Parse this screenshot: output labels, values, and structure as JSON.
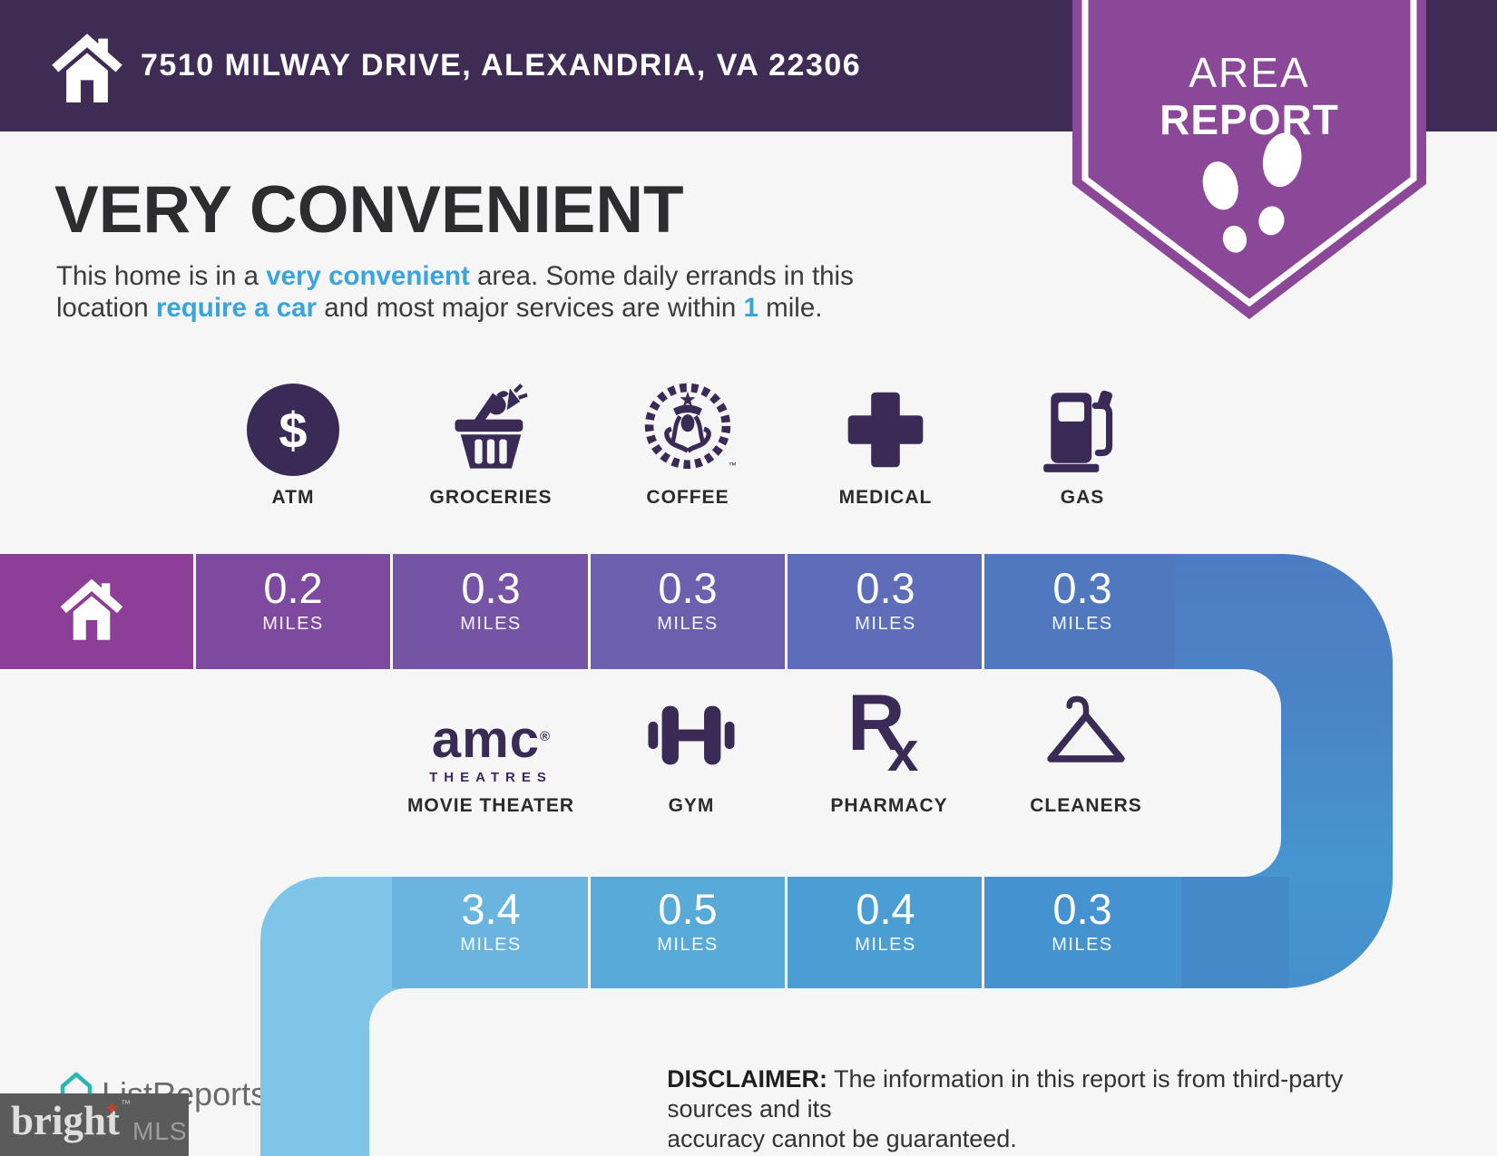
{
  "header": {
    "address": "7510 MILWAY DRIVE, ALEXANDRIA, VA 22306"
  },
  "badge": {
    "line1": "AREA",
    "line2": "REPORT"
  },
  "headline": "VERY CONVENIENT",
  "intro": {
    "line1_parts": [
      {
        "t": "This home is in a "
      },
      {
        "t": "very convenient",
        "hl": true
      },
      {
        "t": " area. Some daily errands in this"
      }
    ],
    "line2_parts": [
      {
        "t": "location "
      },
      {
        "t": "require a car",
        "hl": true
      },
      {
        "t": " and most major services are within "
      },
      {
        "t": "1",
        "hl": true
      },
      {
        "t": " mile."
      }
    ]
  },
  "row1": {
    "items": [
      {
        "label": "ATM",
        "distance": "0.2",
        "unit": "MILES"
      },
      {
        "label": "GROCERIES",
        "distance": "0.3",
        "unit": "MILES"
      },
      {
        "label": "COFFEE",
        "distance": "0.3",
        "unit": "MILES"
      },
      {
        "label": "MEDICAL",
        "distance": "0.3",
        "unit": "MILES"
      },
      {
        "label": "GAS",
        "distance": "0.3",
        "unit": "MILES"
      }
    ]
  },
  "row2": {
    "items": [
      {
        "label": "MOVIE THEATER",
        "distance": "3.4",
        "unit": "MILES"
      },
      {
        "label": "GYM",
        "distance": "0.5",
        "unit": "MILES"
      },
      {
        "label": "PHARMACY",
        "distance": "0.4",
        "unit": "MILES"
      },
      {
        "label": "CLEANERS",
        "distance": "0.3",
        "unit": "MILES"
      }
    ]
  },
  "icons": {
    "atm_symbol": "$",
    "amc": {
      "word": "amc",
      "reg": "®",
      "sub": "THEATRES"
    },
    "rx": {
      "r": "R",
      "x": "x"
    },
    "siren_tm": "™"
  },
  "footer": {
    "listreports": "ListReports",
    "bright": "bright",
    "bright_tm": "™",
    "bright_star": "✦",
    "mls": "MLS",
    "disclaimer_label": "DISCLAIMER:",
    "disclaimer_line1": " The information in this report is from third-party sources and its",
    "disclaimer_line2": "accuracy cannot be guaranteed."
  },
  "colors": {
    "header_purple": "#3f2c55",
    "badge_purple": "#8b4798",
    "accent_blue": "#3aa4dd",
    "icon_purple": "#3a2b56",
    "path_home": "#8d3e96",
    "path_row1": [
      "#7e4aa0",
      "#7554a6",
      "#6c60ae",
      "#5d6db7",
      "#4f78bf"
    ],
    "path_row2": [
      "#6ab5df",
      "#58aad9",
      "#4b9ed4",
      "#4492cf"
    ],
    "path_light": "#7fc5e9",
    "brand_teal": "#2ab7b2",
    "background": "#f7f6f7"
  }
}
